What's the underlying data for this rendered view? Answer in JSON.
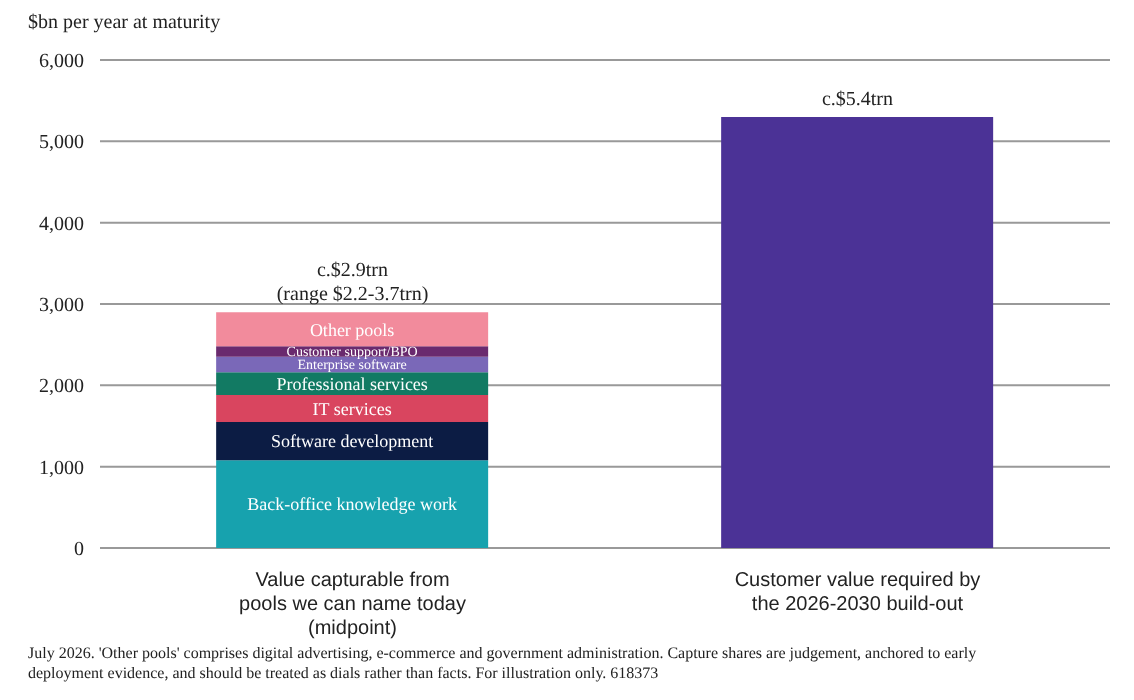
{
  "chart_data": {
    "type": "bar",
    "stacked": true,
    "ylabel": "$bn per year at maturity",
    "categories": [
      "Value capturable from pools we can name today (midpoint)",
      "Customer value required by the 2026-2030 build-out"
    ],
    "series": [
      {
        "name": "Back-office knowledge work",
        "color": "#17a2ae",
        "values": [
          1080,
          null
        ]
      },
      {
        "name": "Software development",
        "color": "#0c1c44",
        "values": [
          470,
          null
        ]
      },
      {
        "name": "IT services",
        "color": "#d9455f",
        "values": [
          330,
          null
        ]
      },
      {
        "name": "Professional services",
        "color": "#127a63",
        "values": [
          280,
          null
        ]
      },
      {
        "name": "Enterprise software",
        "color": "#7a68b8",
        "values": [
          190,
          null
        ]
      },
      {
        "name": "Customer support/BPO",
        "color": "#6a2a6e",
        "values": [
          130,
          null
        ]
      },
      {
        "name": "Other pools",
        "color": "#f28b9c",
        "values": [
          420,
          null
        ]
      },
      {
        "color": "#4b3296",
        "values": [
          null,
          5300
        ]
      }
    ],
    "ylim": [
      0,
      6000
    ],
    "yticks": [
      0,
      {
        "value": 1000,
        "label": "1,000"
      },
      {
        "value": 2000,
        "label": "2,000"
      },
      {
        "value": 3000,
        "label": "3,000"
      },
      {
        "value": 4000,
        "label": "4,000"
      },
      {
        "value": 5000,
        "label": "5,000"
      },
      {
        "value": 6000,
        "label": "6,000"
      }
    ],
    "grid": "y",
    "annotations": [
      {
        "text": "c.$2.9trn\n(range $2.2-3.7trn)",
        "x": "Value capturable from pools we can name today (midpoint)",
        "y": 2900
      },
      {
        "text": "c.$5.4trn",
        "x": "Customer value required by the 2026-2030 build-out",
        "y": 5300
      },
      "July 2026. 'Other pools' comprises digital advertising, e-commerce and government administration. Capture shares are judgement, anchored to early deployment evidence, and should be treated as dials rather than facts. For illustration only. 618373"
    ]
  }
}
